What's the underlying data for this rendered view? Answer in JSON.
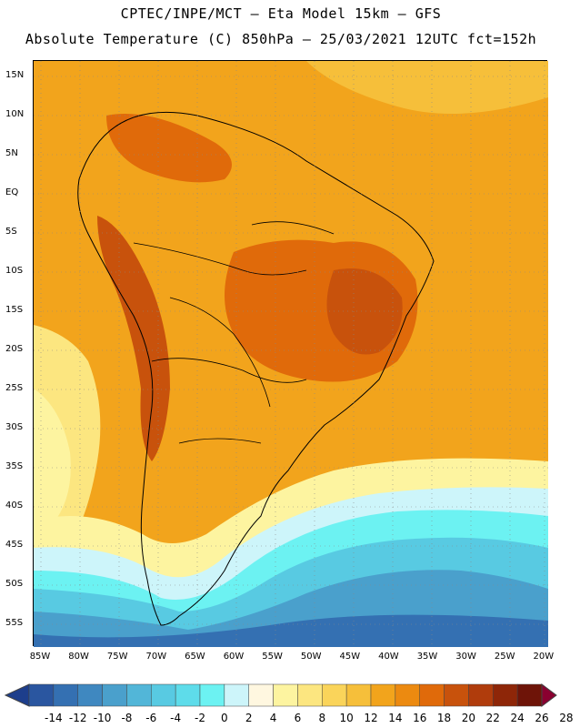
{
  "header": {
    "line1": "CPTEC/INPE/MCT –  Eta Model 15km – GFS",
    "line2": "Absolute Temperature (C) 850hPa – 25/03/2021 12UTC fct=152h"
  },
  "map": {
    "lat_labels": [
      "15N",
      "10N",
      "5N",
      "EQ",
      "5S",
      "10S",
      "15S",
      "20S",
      "25S",
      "30S",
      "35S",
      "40S",
      "45S",
      "50S",
      "55S"
    ],
    "lon_labels": [
      "85W",
      "80W",
      "75W",
      "70W",
      "65W",
      "60W",
      "55W",
      "50W",
      "45W",
      "40W",
      "35W",
      "30W",
      "25W",
      "20W"
    ],
    "background_color": "#f2a41c",
    "grid": "dotted"
  },
  "colorbar": {
    "labels": [
      "-14",
      "-12",
      "-10",
      "-8",
      "-6",
      "-4",
      "-2",
      "0",
      "2",
      "4",
      "6",
      "8",
      "10",
      "12",
      "14",
      "16",
      "18",
      "20",
      "22",
      "24",
      "26",
      "28"
    ],
    "colors": [
      "#1d3e8c",
      "#2a56a0",
      "#3470b2",
      "#3f88c0",
      "#4aa0cc",
      "#52b6d8",
      "#58cae2",
      "#5edcea",
      "#6cf2f2",
      "#cdf5fa",
      "#fff7e0",
      "#fdf4a0",
      "#fce680",
      "#fad45a",
      "#f6bf3a",
      "#f2a41c",
      "#ec8a10",
      "#e06a0a",
      "#c8520c",
      "#b03c0c",
      "#8e2608",
      "#6e1408",
      "#8a0030"
    ]
  }
}
